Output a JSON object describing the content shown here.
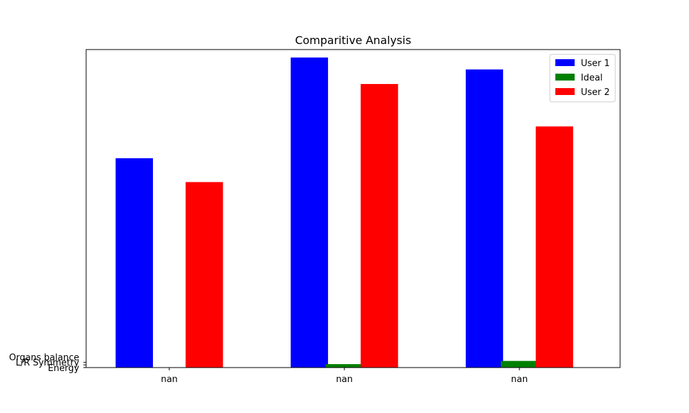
{
  "chart_data": {
    "type": "bar",
    "title": "Comparitive Analysis",
    "categories": [
      "nan",
      "nan",
      "nan"
    ],
    "y_tick_labels": [
      "Energy",
      "L/R Symmetry",
      "Organs balance"
    ],
    "y_tick_values": [
      0,
      1,
      2
    ],
    "ylim": [
      0,
      120
    ],
    "legend_position": "top-right",
    "grid": false,
    "series": [
      {
        "name": "User 1",
        "color": "#0000ff",
        "values": [
          79,
          117,
          112.5
        ]
      },
      {
        "name": "Ideal",
        "color": "#008000",
        "values": [
          0,
          1.3,
          2.5
        ]
      },
      {
        "name": "User 2",
        "color": "#ff0000",
        "values": [
          70,
          107,
          91
        ]
      }
    ]
  }
}
